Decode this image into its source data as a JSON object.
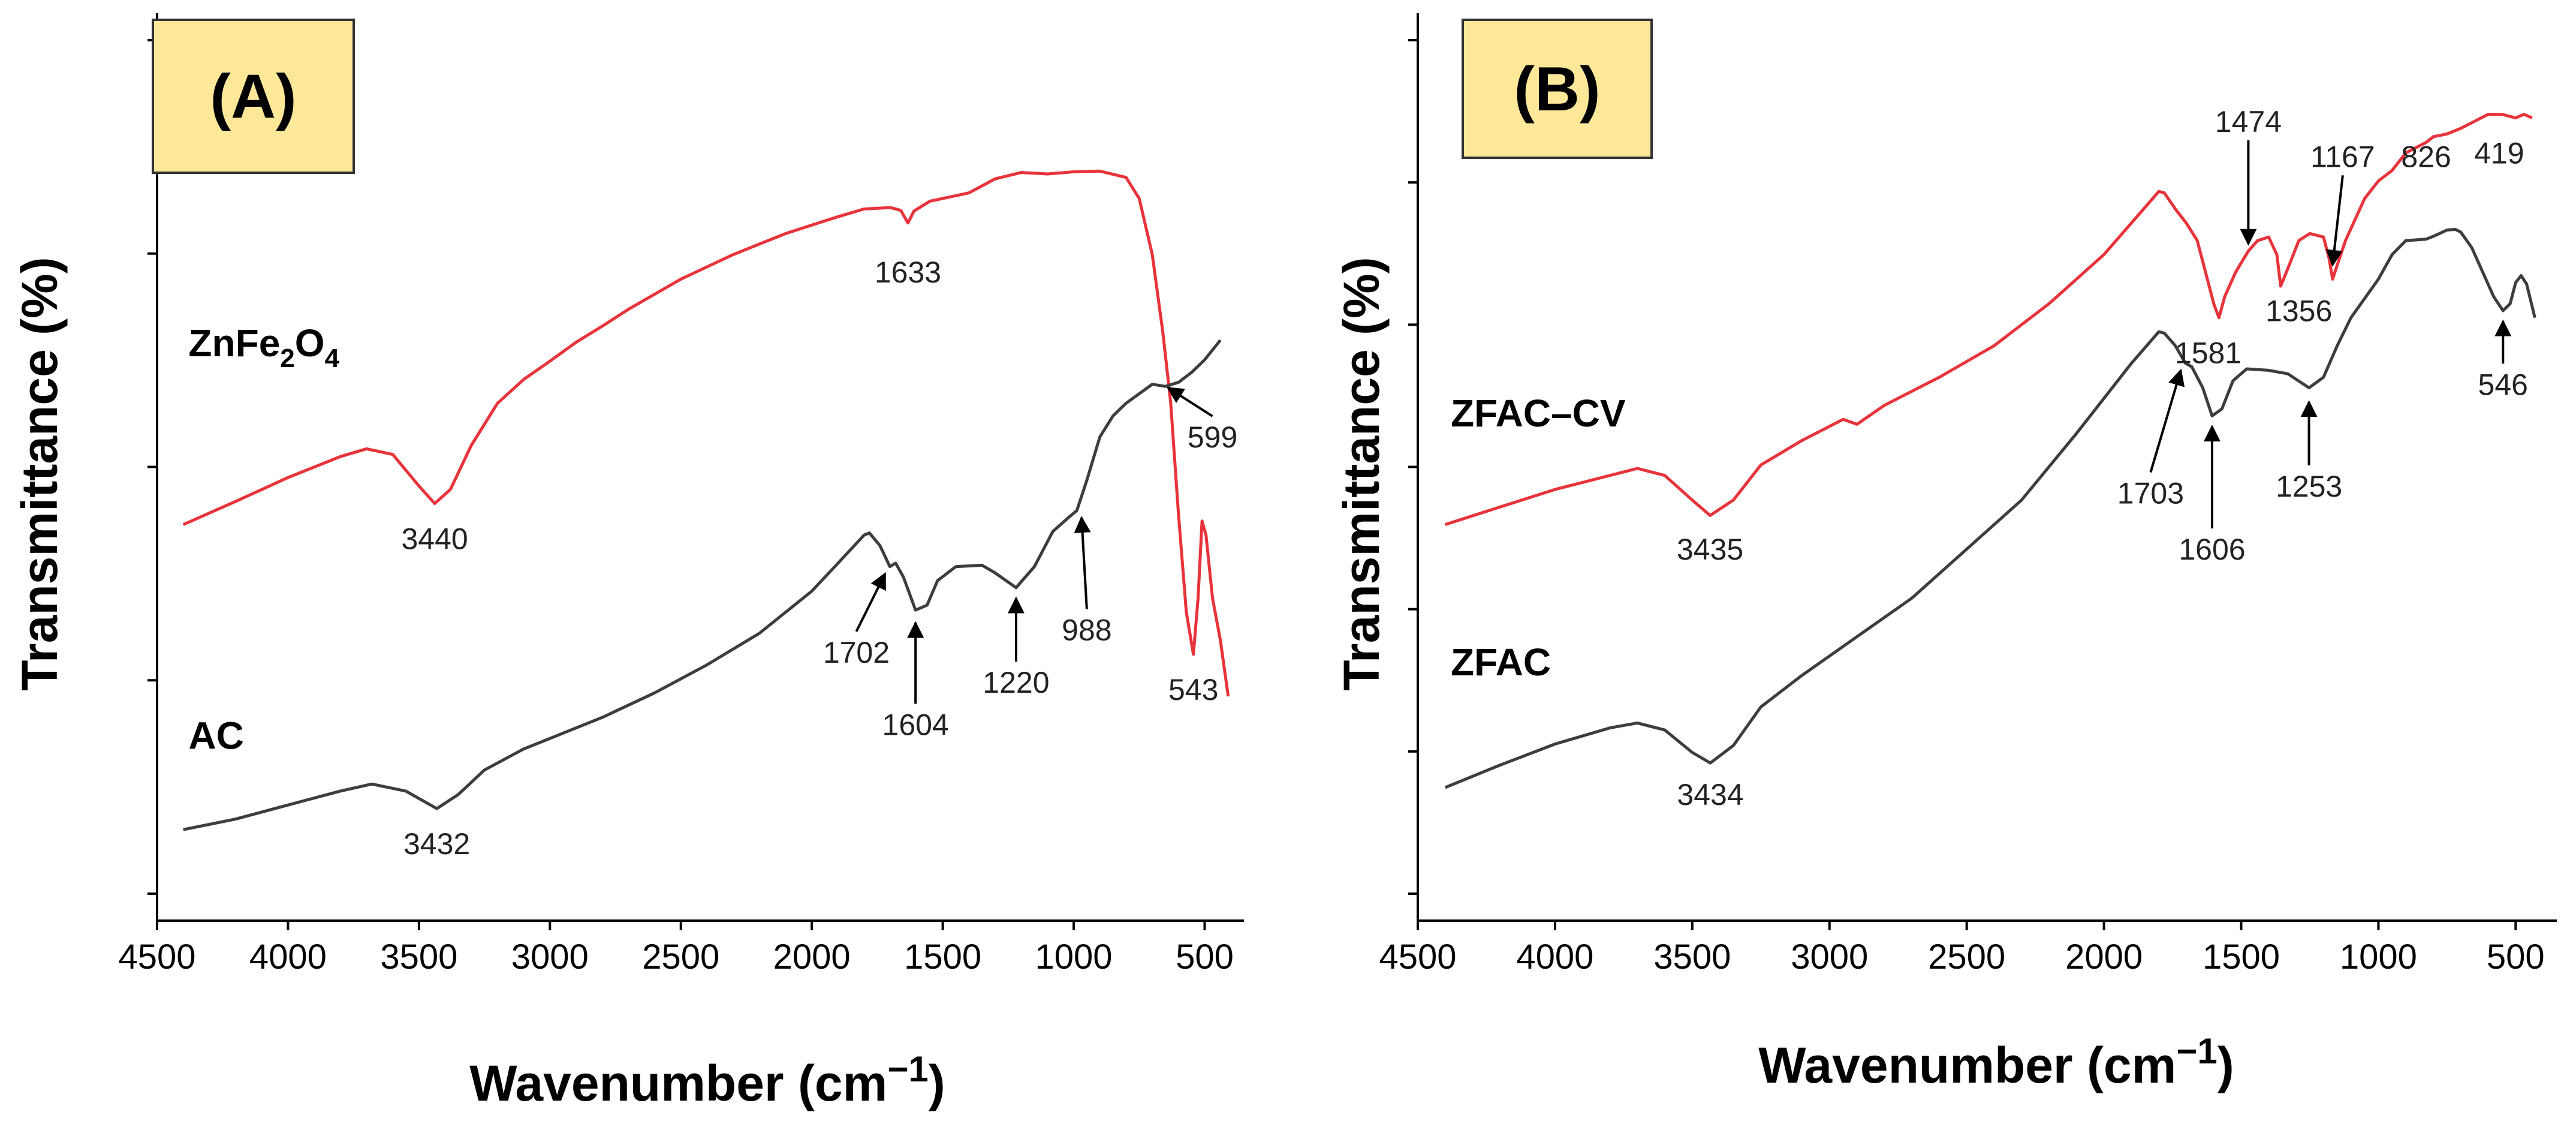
{
  "colors": {
    "red_series": "#e8333a",
    "black_series": "#3d3d3d",
    "panel_box": "#fde89a"
  },
  "chart_data": [
    {
      "type": "line",
      "panel_label": "(A)",
      "xlabel": "Wavenumber (cm",
      "xlabel_sup": "−1",
      "xlabel_close": ")",
      "ylabel": "Transmittance (%)",
      "xlim": [
        4500,
        350
      ],
      "ylim": [
        0,
        1
      ],
      "x_ticks": [
        4500,
        4000,
        3500,
        3000,
        2500,
        2000,
        1500,
        1000,
        500
      ],
      "y_tick_count": 5,
      "series": [
        {
          "name": "ZnFe2O4",
          "label_parts": [
            {
              "t": "ZnFe"
            },
            {
              "t": "2",
              "sub": true
            },
            {
              "t": "O"
            },
            {
              "t": "4",
              "sub": true
            }
          ],
          "color": "red",
          "label_x": 4380,
          "label_y": 0.645,
          "points": [
            [
              4400,
              0.405
            ],
            [
              4200,
              0.438
            ],
            [
              4000,
              0.472
            ],
            [
              3800,
              0.502
            ],
            [
              3700,
              0.513
            ],
            [
              3600,
              0.505
            ],
            [
              3500,
              0.46
            ],
            [
              3440,
              0.435
            ],
            [
              3380,
              0.455
            ],
            [
              3300,
              0.518
            ],
            [
              3200,
              0.578
            ],
            [
              3100,
              0.612
            ],
            [
              3000,
              0.638
            ],
            [
              2900,
              0.665
            ],
            [
              2800,
              0.688
            ],
            [
              2700,
              0.712
            ],
            [
              2500,
              0.755
            ],
            [
              2300,
              0.79
            ],
            [
              2100,
              0.82
            ],
            [
              2000,
              0.832
            ],
            [
              1900,
              0.844
            ],
            [
              1800,
              0.855
            ],
            [
              1700,
              0.857
            ],
            [
              1660,
              0.853
            ],
            [
              1633,
              0.835
            ],
            [
              1610,
              0.852
            ],
            [
              1550,
              0.866
            ],
            [
              1400,
              0.878
            ],
            [
              1300,
              0.898
            ],
            [
              1200,
              0.907
            ],
            [
              1100,
              0.905
            ],
            [
              1000,
              0.908
            ],
            [
              900,
              0.909
            ],
            [
              800,
              0.9
            ],
            [
              750,
              0.87
            ],
            [
              700,
              0.79
            ],
            [
              660,
              0.68
            ],
            [
              630,
              0.58
            ],
            [
              600,
              0.42
            ],
            [
              570,
              0.28
            ],
            [
              543,
              0.22
            ],
            [
              525,
              0.3
            ],
            [
              510,
              0.41
            ],
            [
              495,
              0.39
            ],
            [
              470,
              0.3
            ],
            [
              440,
              0.24
            ],
            [
              410,
              0.16
            ]
          ]
        },
        {
          "name": "AC",
          "color": "black",
          "label_x": 4380,
          "label_y": 0.085,
          "points": [
            [
              4400,
              -0.03
            ],
            [
              4200,
              -0.015
            ],
            [
              4000,
              0.005
            ],
            [
              3800,
              0.025
            ],
            [
              3680,
              0.035
            ],
            [
              3550,
              0.025
            ],
            [
              3432,
              0.0
            ],
            [
              3350,
              0.02
            ],
            [
              3250,
              0.055
            ],
            [
              3100,
              0.085
            ],
            [
              3000,
              0.1
            ],
            [
              2800,
              0.13
            ],
            [
              2600,
              0.165
            ],
            [
              2400,
              0.205
            ],
            [
              2200,
              0.25
            ],
            [
              2000,
              0.31
            ],
            [
              1900,
              0.35
            ],
            [
              1800,
              0.39
            ],
            [
              1780,
              0.393
            ],
            [
              1740,
              0.375
            ],
            [
              1702,
              0.345
            ],
            [
              1680,
              0.35
            ],
            [
              1650,
              0.33
            ],
            [
              1604,
              0.283
            ],
            [
              1560,
              0.29
            ],
            [
              1520,
              0.325
            ],
            [
              1450,
              0.345
            ],
            [
              1350,
              0.347
            ],
            [
              1300,
              0.336
            ],
            [
              1220,
              0.315
            ],
            [
              1150,
              0.345
            ],
            [
              1080,
              0.395
            ],
            [
              1020,
              0.415
            ],
            [
              988,
              0.425
            ],
            [
              950,
              0.468
            ],
            [
              900,
              0.53
            ],
            [
              850,
              0.56
            ],
            [
              800,
              0.578
            ],
            [
              700,
              0.605
            ],
            [
              650,
              0.602
            ],
            [
              599,
              0.608
            ],
            [
              550,
              0.622
            ],
            [
              500,
              0.64
            ],
            [
              440,
              0.668
            ]
          ]
        }
      ],
      "annotations": [
        {
          "text": "3440",
          "x": 3440,
          "y": 0.37,
          "ax": null,
          "ay": null
        },
        {
          "text": "1633",
          "x": 1633,
          "y": 0.75,
          "ax": null,
          "ay": null
        },
        {
          "text": "3432",
          "x": 3432,
          "y": -0.065,
          "ax": null,
          "ay": null
        },
        {
          "text": "1702",
          "x": 1830,
          "y": 0.208,
          "ax": 1720,
          "ay": 0.335
        },
        {
          "text": "1604",
          "x": 1604,
          "y": 0.105,
          "ax": 1604,
          "ay": 0.265
        },
        {
          "text": "1220",
          "x": 1220,
          "y": 0.165,
          "ax": 1220,
          "ay": 0.3
        },
        {
          "text": "988",
          "x": 950,
          "y": 0.24,
          "ax": 970,
          "ay": 0.415
        },
        {
          "text": "599",
          "x": 470,
          "y": 0.515,
          "ax": 640,
          "ay": 0.6
        },
        {
          "text": "543",
          "x": 543,
          "y": 0.155,
          "ax": null,
          "ay": null
        }
      ]
    },
    {
      "type": "line",
      "panel_label": "(B)",
      "xlabel": "Wavenumber (cm",
      "xlabel_sup": "−1",
      "xlabel_close": ")",
      "ylabel": "Transmittance (%)",
      "xlim": [
        4500,
        350
      ],
      "ylim": [
        0,
        1
      ],
      "x_ticks": [
        4500,
        4000,
        3500,
        3000,
        2500,
        2000,
        1500,
        1000,
        500
      ],
      "y_tick_count": 7,
      "series": [
        {
          "name": "ZFAC–CV",
          "label_parts": [
            {
              "t": "ZFAC–CV"
            }
          ],
          "color": "red",
          "label_x": 4380,
          "label_y": 0.545,
          "points": [
            [
              4400,
              0.405
            ],
            [
              4200,
              0.43
            ],
            [
              4000,
              0.455
            ],
            [
              3800,
              0.475
            ],
            [
              3700,
              0.485
            ],
            [
              3600,
              0.475
            ],
            [
              3500,
              0.44
            ],
            [
              3435,
              0.418
            ],
            [
              3350,
              0.44
            ],
            [
              3250,
              0.49
            ],
            [
              3100,
              0.525
            ],
            [
              3000,
              0.545
            ],
            [
              2950,
              0.555
            ],
            [
              2900,
              0.548
            ],
            [
              2800,
              0.575
            ],
            [
              2600,
              0.615
            ],
            [
              2400,
              0.66
            ],
            [
              2200,
              0.72
            ],
            [
              2000,
              0.79
            ],
            [
              1900,
              0.835
            ],
            [
              1800,
              0.88
            ],
            [
              1780,
              0.878
            ],
            [
              1740,
              0.855
            ],
            [
              1700,
              0.835
            ],
            [
              1660,
              0.81
            ],
            [
              1620,
              0.75
            ],
            [
              1600,
              0.72
            ],
            [
              1581,
              0.7
            ],
            [
              1560,
              0.73
            ],
            [
              1520,
              0.765
            ],
            [
              1474,
              0.795
            ],
            [
              1440,
              0.81
            ],
            [
              1400,
              0.815
            ],
            [
              1370,
              0.79
            ],
            [
              1356,
              0.745
            ],
            [
              1330,
              0.77
            ],
            [
              1290,
              0.81
            ],
            [
              1250,
              0.82
            ],
            [
              1200,
              0.815
            ],
            [
              1180,
              0.785
            ],
            [
              1167,
              0.755
            ],
            [
              1150,
              0.775
            ],
            [
              1120,
              0.81
            ],
            [
              1050,
              0.87
            ],
            [
              1000,
              0.895
            ],
            [
              950,
              0.91
            ],
            [
              900,
              0.935
            ],
            [
              826,
              0.95
            ],
            [
              800,
              0.958
            ],
            [
              750,
              0.962
            ],
            [
              700,
              0.97
            ],
            [
              650,
              0.98
            ],
            [
              600,
              0.99
            ],
            [
              550,
              0.99
            ],
            [
              500,
              0.985
            ],
            [
              470,
              0.99
            ],
            [
              440,
              0.985
            ]
          ]
        },
        {
          "name": "ZFAC",
          "label_parts": [
            {
              "t": "ZFAC"
            }
          ],
          "color": "black",
          "label_x": 4380,
          "label_y": 0.19,
          "points": [
            [
              4400,
              0.03
            ],
            [
              4200,
              0.062
            ],
            [
              4000,
              0.092
            ],
            [
              3800,
              0.115
            ],
            [
              3700,
              0.122
            ],
            [
              3600,
              0.112
            ],
            [
              3500,
              0.08
            ],
            [
              3434,
              0.065
            ],
            [
              3350,
              0.09
            ],
            [
              3250,
              0.145
            ],
            [
              3100,
              0.19
            ],
            [
              2900,
              0.245
            ],
            [
              2700,
              0.3
            ],
            [
              2500,
              0.37
            ],
            [
              2300,
              0.44
            ],
            [
              2100,
              0.535
            ],
            [
              1900,
              0.635
            ],
            [
              1800,
              0.68
            ],
            [
              1780,
              0.678
            ],
            [
              1740,
              0.66
            ],
            [
              1703,
              0.635
            ],
            [
              1680,
              0.63
            ],
            [
              1640,
              0.6
            ],
            [
              1606,
              0.56
            ],
            [
              1570,
              0.57
            ],
            [
              1530,
              0.61
            ],
            [
              1480,
              0.627
            ],
            [
              1400,
              0.625
            ],
            [
              1330,
              0.62
            ],
            [
              1253,
              0.6
            ],
            [
              1200,
              0.615
            ],
            [
              1150,
              0.66
            ],
            [
              1100,
              0.7
            ],
            [
              1000,
              0.755
            ],
            [
              950,
              0.79
            ],
            [
              900,
              0.81
            ],
            [
              826,
              0.812
            ],
            [
              800,
              0.816
            ],
            [
              750,
              0.825
            ],
            [
              720,
              0.826
            ],
            [
              700,
              0.822
            ],
            [
              660,
              0.8
            ],
            [
              620,
              0.765
            ],
            [
              580,
              0.73
            ],
            [
              546,
              0.71
            ],
            [
              520,
              0.72
            ],
            [
              500,
              0.75
            ],
            [
              480,
              0.76
            ],
            [
              460,
              0.748
            ],
            [
              430,
              0.7
            ]
          ]
        }
      ],
      "annotations": [
        {
          "text": "3435",
          "x": 3435,
          "y": 0.355,
          "ax": null,
          "ay": null
        },
        {
          "text": "3434",
          "x": 3434,
          "y": 0.005,
          "ax": null,
          "ay": null
        },
        {
          "text": "1581",
          "x": 1620,
          "y": 0.635,
          "ax": null,
          "ay": null
        },
        {
          "text": "1474",
          "x": 1474,
          "y": 0.965,
          "ax": 1474,
          "ay": 0.805
        },
        {
          "text": "1356",
          "x": 1290,
          "y": 0.695,
          "ax": null,
          "ay": null
        },
        {
          "text": "1167",
          "x": 1130,
          "y": 0.915,
          "ax": 1167,
          "ay": 0.775
        },
        {
          "text": "826",
          "x": 826,
          "y": 0.915,
          "ax": null,
          "ay": null
        },
        {
          "text": "419",
          "x": 560,
          "y": 0.92,
          "ax": null,
          "ay": null
        },
        {
          "text": "546",
          "x": 546,
          "y": 0.59,
          "ax": 546,
          "ay": 0.695
        },
        {
          "text": "1703",
          "x": 1830,
          "y": 0.435,
          "ax": 1720,
          "ay": 0.625
        },
        {
          "text": "1606",
          "x": 1606,
          "y": 0.355,
          "ax": 1606,
          "ay": 0.545
        },
        {
          "text": "1253",
          "x": 1253,
          "y": 0.445,
          "ax": 1253,
          "ay": 0.58
        }
      ]
    }
  ]
}
